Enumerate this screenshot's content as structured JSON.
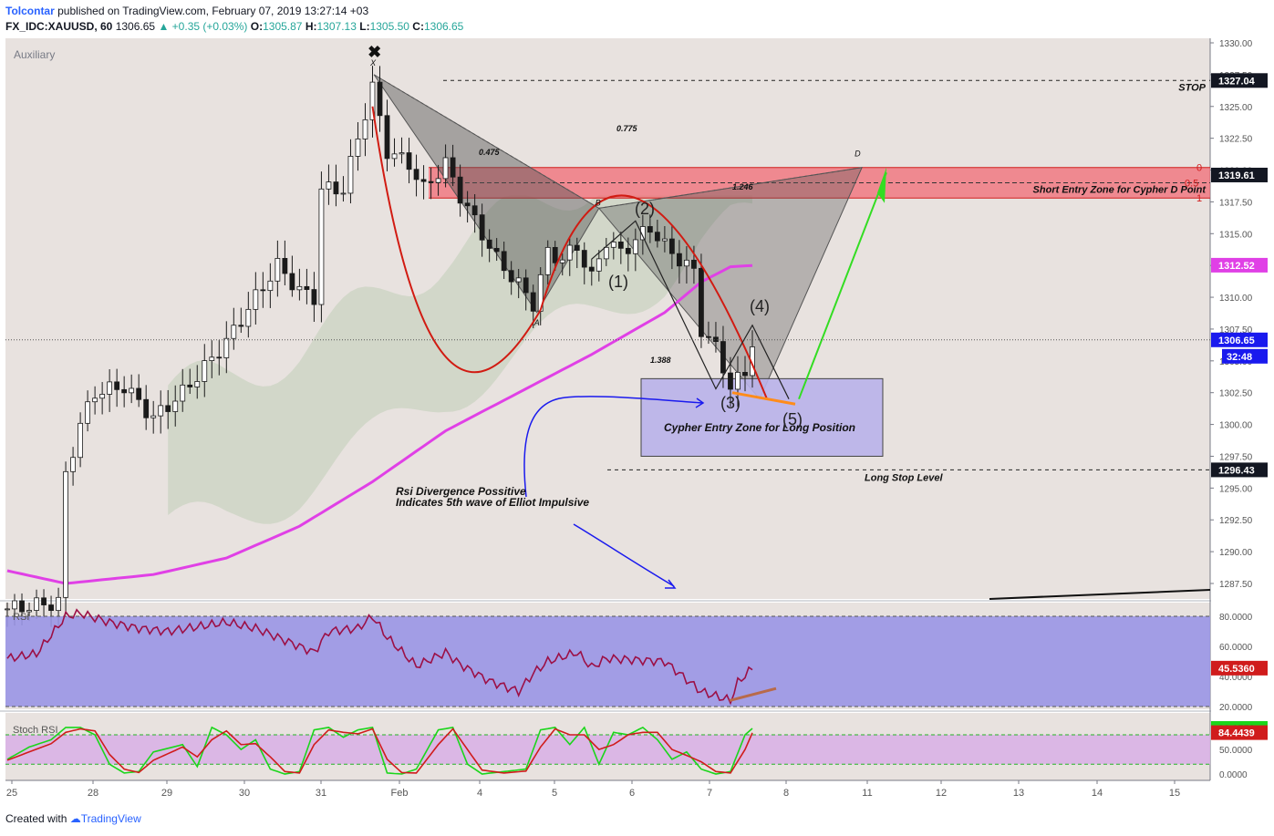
{
  "header": {
    "author": "Tolcontar",
    "published_text": "published on TradingView.com, February 07, 2019 13:27:14 +03",
    "symbol": "FX_IDC:XAUUSD, 60",
    "last": "1306.65",
    "change": "+0.35 (+0.03%)",
    "o_label": "O:",
    "o_value": "1305.87",
    "h_label": "H:",
    "h_value": "1307.13",
    "l_label": "L:",
    "l_value": "1305.50",
    "c_label": "C:",
    "c_value": "1306.65"
  },
  "footer": {
    "created_with": "Created with",
    "brand": "TradingView"
  },
  "colors": {
    "background": "#e8e2df",
    "ma": "#e040e6",
    "rsi_line": "#9c1046",
    "rsi_band": "#9a96e6",
    "stoch_band": "#d9b3e6",
    "stoch_k": "#1bd61b",
    "stoch_d": "#d01c1c",
    "short_zone": "#f2646e",
    "long_zone": "#b9b3ea",
    "green_arrow": "#33dd22",
    "orange": "#ff8c1a",
    "blue": "#1a1aee",
    "candle": "#1a1a1a",
    "red_curve": "#d11b12"
  },
  "chart_data": {
    "type": "candlestick",
    "pane_label": "Auxiliary",
    "x_tick_labels": [
      "25",
      "28",
      "29",
      "30",
      "31",
      "Feb",
      "4",
      "5",
      "6",
      "7",
      "8",
      "11",
      "12",
      "13",
      "14",
      "15"
    ],
    "y_tick_labels": [
      "1330.00",
      "1327.50",
      "1325.00",
      "1322.50",
      "1320.00",
      "1317.50",
      "1315.00",
      "1312.50",
      "1310.00",
      "1307.50",
      "1305.00",
      "1302.50",
      "1300.00",
      "1297.50",
      "1295.00",
      "1292.50",
      "1290.00",
      "1287.50"
    ],
    "price_anchors": [
      {
        "t": 0,
        "p": 1285.5
      },
      {
        "t": 7,
        "p": 1286.0
      },
      {
        "t": 8,
        "p": 1296
      },
      {
        "t": 10,
        "p": 1300
      },
      {
        "t": 12,
        "p": 1302.5
      },
      {
        "t": 16,
        "p": 1303
      },
      {
        "t": 20,
        "p": 1300.5
      },
      {
        "t": 24,
        "p": 1302.5
      },
      {
        "t": 30,
        "p": 1306.5
      },
      {
        "t": 34,
        "p": 1310.0
      },
      {
        "t": 37,
        "p": 1312.5
      },
      {
        "t": 40,
        "p": 1310.5
      },
      {
        "t": 42,
        "p": 1310
      },
      {
        "t": 43,
        "p": 1318.5
      },
      {
        "t": 46,
        "p": 1318.5
      },
      {
        "t": 48,
        "p": 1322.5
      },
      {
        "t": 50,
        "p": 1326.5
      },
      {
        "t": 52,
        "p": 1321.5
      },
      {
        "t": 55,
        "p": 1320.5
      },
      {
        "t": 57,
        "p": 1318.5
      },
      {
        "t": 60,
        "p": 1320.5
      },
      {
        "t": 62,
        "p": 1318
      },
      {
        "t": 64,
        "p": 1316
      },
      {
        "t": 67,
        "p": 1313
      },
      {
        "t": 70,
        "p": 1311
      },
      {
        "t": 72,
        "p": 1309.5
      },
      {
        "t": 74,
        "p": 1313.5
      },
      {
        "t": 76,
        "p": 1313
      },
      {
        "t": 78,
        "p": 1314
      },
      {
        "t": 80,
        "p": 1311.5
      },
      {
        "t": 82,
        "p": 1314.5
      },
      {
        "t": 84,
        "p": 1313.5
      },
      {
        "t": 86,
        "p": 1314.5
      },
      {
        "t": 88,
        "p": 1315.5
      },
      {
        "t": 90,
        "p": 1314
      },
      {
        "t": 92,
        "p": 1313
      },
      {
        "t": 94,
        "p": 1312
      },
      {
        "t": 95,
        "p": 1307.5
      },
      {
        "t": 97,
        "p": 1306
      },
      {
        "t": 99,
        "p": 1303
      },
      {
        "t": 101,
        "p": 1304
      },
      {
        "t": 102,
        "p": 1306.6
      }
    ],
    "ma_anchors": [
      {
        "t": 0,
        "p": 1288.5
      },
      {
        "t": 8,
        "p": 1287.5
      },
      {
        "t": 20,
        "p": 1288.2
      },
      {
        "t": 30,
        "p": 1289.5
      },
      {
        "t": 40,
        "p": 1292
      },
      {
        "t": 50,
        "p": 1295.5
      },
      {
        "t": 60,
        "p": 1299.5
      },
      {
        "t": 70,
        "p": 1302.5
      },
      {
        "t": 80,
        "p": 1305.5
      },
      {
        "t": 90,
        "p": 1308.8
      },
      {
        "t": 95,
        "p": 1311.2
      },
      {
        "t": 99,
        "p": 1312.4
      },
      {
        "t": 102,
        "p": 1312.5
      }
    ],
    "rsi": {
      "label": "RSI",
      "y_tick_labels": [
        "80.0000",
        "60.0000",
        "40.0000",
        "20.0000"
      ],
      "current": "45.5360",
      "anchors": [
        {
          "t": 0,
          "v": 52
        },
        {
          "t": 4,
          "v": 55
        },
        {
          "t": 8,
          "v": 80
        },
        {
          "t": 10,
          "v": 82
        },
        {
          "t": 14,
          "v": 76
        },
        {
          "t": 18,
          "v": 72
        },
        {
          "t": 22,
          "v": 70
        },
        {
          "t": 26,
          "v": 73
        },
        {
          "t": 30,
          "v": 76
        },
        {
          "t": 34,
          "v": 72
        },
        {
          "t": 38,
          "v": 64
        },
        {
          "t": 42,
          "v": 56
        },
        {
          "t": 44,
          "v": 70
        },
        {
          "t": 48,
          "v": 72
        },
        {
          "t": 50,
          "v": 80
        },
        {
          "t": 52,
          "v": 66
        },
        {
          "t": 56,
          "v": 47
        },
        {
          "t": 60,
          "v": 56
        },
        {
          "t": 62,
          "v": 48
        },
        {
          "t": 66,
          "v": 37
        },
        {
          "t": 70,
          "v": 30
        },
        {
          "t": 72,
          "v": 42
        },
        {
          "t": 74,
          "v": 50
        },
        {
          "t": 78,
          "v": 56
        },
        {
          "t": 80,
          "v": 46
        },
        {
          "t": 82,
          "v": 52
        },
        {
          "t": 86,
          "v": 51
        },
        {
          "t": 90,
          "v": 50
        },
        {
          "t": 92,
          "v": 42
        },
        {
          "t": 95,
          "v": 30
        },
        {
          "t": 97,
          "v": 27
        },
        {
          "t": 99,
          "v": 24
        },
        {
          "t": 100,
          "v": 36
        },
        {
          "t": 102,
          "v": 45.5
        }
      ]
    },
    "stoch_rsi": {
      "label": "Stoch RSI",
      "y_tick_labels": [
        "50.0000",
        "0.0000"
      ],
      "k_value": "93.1551",
      "d_value": "84.4439",
      "k_anchors": [
        {
          "t": 0,
          "v": 30
        },
        {
          "t": 3,
          "v": 55
        },
        {
          "t": 6,
          "v": 70
        },
        {
          "t": 8,
          "v": 95
        },
        {
          "t": 10,
          "v": 95
        },
        {
          "t": 12,
          "v": 80
        },
        {
          "t": 14,
          "v": 20
        },
        {
          "t": 16,
          "v": 2
        },
        {
          "t": 18,
          "v": 5
        },
        {
          "t": 20,
          "v": 45
        },
        {
          "t": 24,
          "v": 60
        },
        {
          "t": 26,
          "v": 15
        },
        {
          "t": 28,
          "v": 95
        },
        {
          "t": 30,
          "v": 80
        },
        {
          "t": 32,
          "v": 50
        },
        {
          "t": 34,
          "v": 70
        },
        {
          "t": 36,
          "v": 10
        },
        {
          "t": 38,
          "v": 0
        },
        {
          "t": 40,
          "v": 5
        },
        {
          "t": 42,
          "v": 90
        },
        {
          "t": 44,
          "v": 95
        },
        {
          "t": 46,
          "v": 75
        },
        {
          "t": 48,
          "v": 90
        },
        {
          "t": 50,
          "v": 95
        },
        {
          "t": 52,
          "v": 2
        },
        {
          "t": 54,
          "v": 0
        },
        {
          "t": 56,
          "v": 10
        },
        {
          "t": 59,
          "v": 90
        },
        {
          "t": 61,
          "v": 95
        },
        {
          "t": 63,
          "v": 20
        },
        {
          "t": 65,
          "v": 0
        },
        {
          "t": 68,
          "v": 5
        },
        {
          "t": 71,
          "v": 10
        },
        {
          "t": 73,
          "v": 90
        },
        {
          "t": 75,
          "v": 95
        },
        {
          "t": 77,
          "v": 60
        },
        {
          "t": 79,
          "v": 95
        },
        {
          "t": 81,
          "v": 20
        },
        {
          "t": 83,
          "v": 85
        },
        {
          "t": 85,
          "v": 80
        },
        {
          "t": 87,
          "v": 95
        },
        {
          "t": 89,
          "v": 70
        },
        {
          "t": 91,
          "v": 30
        },
        {
          "t": 93,
          "v": 45
        },
        {
          "t": 95,
          "v": 10
        },
        {
          "t": 97,
          "v": 0
        },
        {
          "t": 99,
          "v": 5
        },
        {
          "t": 101,
          "v": 80
        },
        {
          "t": 102,
          "v": 93
        }
      ],
      "d_anchors": [
        {
          "t": 0,
          "v": 28
        },
        {
          "t": 3,
          "v": 45
        },
        {
          "t": 6,
          "v": 62
        },
        {
          "t": 8,
          "v": 85
        },
        {
          "t": 10,
          "v": 92
        },
        {
          "t": 12,
          "v": 88
        },
        {
          "t": 14,
          "v": 40
        },
        {
          "t": 16,
          "v": 10
        },
        {
          "t": 18,
          "v": 3
        },
        {
          "t": 20,
          "v": 28
        },
        {
          "t": 24,
          "v": 55
        },
        {
          "t": 26,
          "v": 35
        },
        {
          "t": 28,
          "v": 70
        },
        {
          "t": 30,
          "v": 88
        },
        {
          "t": 32,
          "v": 60
        },
        {
          "t": 34,
          "v": 62
        },
        {
          "t": 36,
          "v": 35
        },
        {
          "t": 38,
          "v": 5
        },
        {
          "t": 40,
          "v": 2
        },
        {
          "t": 42,
          "v": 60
        },
        {
          "t": 44,
          "v": 90
        },
        {
          "t": 46,
          "v": 85
        },
        {
          "t": 48,
          "v": 82
        },
        {
          "t": 50,
          "v": 92
        },
        {
          "t": 52,
          "v": 30
        },
        {
          "t": 54,
          "v": 3
        },
        {
          "t": 56,
          "v": 2
        },
        {
          "t": 59,
          "v": 60
        },
        {
          "t": 61,
          "v": 92
        },
        {
          "t": 63,
          "v": 50
        },
        {
          "t": 65,
          "v": 8
        },
        {
          "t": 68,
          "v": 2
        },
        {
          "t": 71,
          "v": 6
        },
        {
          "t": 73,
          "v": 55
        },
        {
          "t": 75,
          "v": 92
        },
        {
          "t": 77,
          "v": 80
        },
        {
          "t": 79,
          "v": 80
        },
        {
          "t": 81,
          "v": 50
        },
        {
          "t": 83,
          "v": 60
        },
        {
          "t": 85,
          "v": 80
        },
        {
          "t": 87,
          "v": 85
        },
        {
          "t": 89,
          "v": 85
        },
        {
          "t": 91,
          "v": 50
        },
        {
          "t": 93,
          "v": 38
        },
        {
          "t": 95,
          "v": 25
        },
        {
          "t": 97,
          "v": 5
        },
        {
          "t": 99,
          "v": 2
        },
        {
          "t": 101,
          "v": 50
        },
        {
          "t": 102,
          "v": 84
        }
      ]
    },
    "price_labels": {
      "stop": "1327.04",
      "short_entry": "1319.61",
      "ma": "1312.52",
      "last": "1306.65",
      "countdown": "32:48",
      "long_stop": "1296.43"
    },
    "levels": {
      "stop": 1327.04,
      "long_stop": 1296.43,
      "short_zone_top": 1320.2,
      "short_zone_bottom": 1317.8,
      "short_zone_mid": 1319.0,
      "long_zone_top": 1303.6,
      "long_zone_bottom": 1297.5
    },
    "fib_labels": {
      "top": "0",
      "mid": "0.5",
      "bottom": "1"
    },
    "annotations": {
      "stop": "STOP",
      "short_entry": "Short Entry Zone for Cypher D Point",
      "long_entry": "Cypher Entry Zone for Long Position",
      "long_stop": "Long Stop Level",
      "rsi_divergence_line1": "Rsi Divergence Possitive",
      "rsi_divergence_line2": "Indicates 5th wave of Elliot Impulsive",
      "ratio_1": "0.475",
      "ratio_2": "0.775",
      "ratio_3": "1.246",
      "ratio_4": "1.388",
      "point_x": "X",
      "point_a": "A",
      "point_b": "B",
      "point_d": "D",
      "wave_1": "(1)",
      "wave_2": "(2)",
      "wave_3": "(3)",
      "wave_4": "(4)",
      "wave_5": "(5)"
    }
  }
}
